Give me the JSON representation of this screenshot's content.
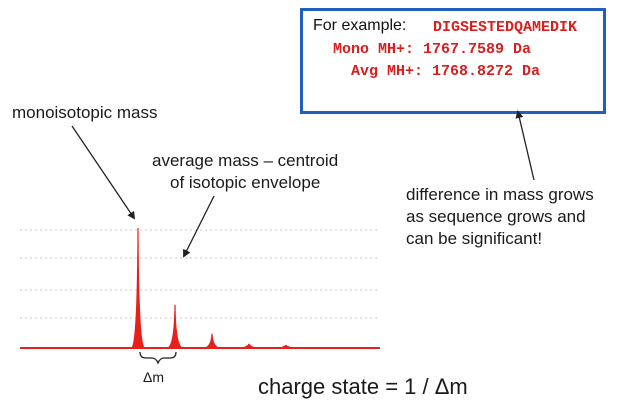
{
  "example": {
    "prefix": "For example:",
    "sequence": "DIGSESTEDQAMEDIK",
    "mono_line": "Mono MH+: 1767.7589 Da",
    "avg_line": " Avg MH+: 1768.8272 Da"
  },
  "labels": {
    "monoisotopic": "monoisotopic mass",
    "average_line1": "average mass – centroid",
    "average_line2": "of isotopic envelope",
    "difference_line1": "difference in mass grows",
    "difference_line2": "as sequence grows and",
    "difference_line3": "can be significant!",
    "delta_m": "Δm",
    "charge_state": "charge state = 1 / Δm"
  },
  "colors": {
    "peak": "#e8201c",
    "box_border": "#1f5fbf",
    "arrow": "#222222",
    "grid": "#c8c8c8"
  },
  "spectrum": {
    "peaks": [
      {
        "name": "monoisotopic",
        "relative_height": 1.0
      },
      {
        "name": "isotope-1",
        "relative_height": 0.36
      },
      {
        "name": "isotope-2",
        "relative_height": 0.12
      },
      {
        "name": "isotope-3",
        "relative_height": 0.035
      },
      {
        "name": "isotope-4",
        "relative_height": 0.02
      }
    ]
  }
}
